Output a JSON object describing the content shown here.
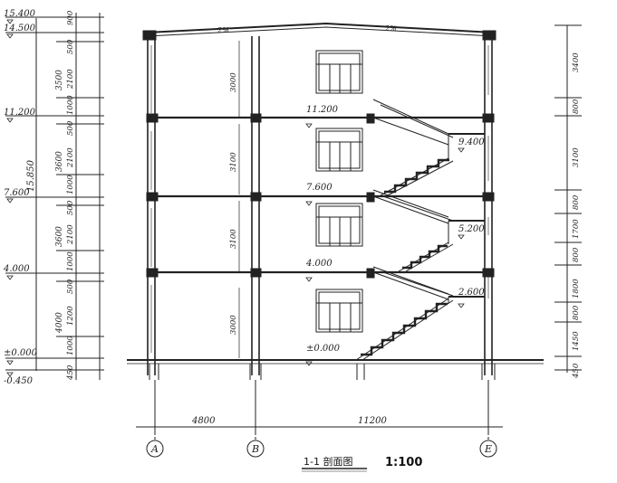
{
  "left_elevations": [
    "15.400",
    "14.500",
    "11.200",
    "7.600",
    "4.000",
    "±0.000",
    "-0.450"
  ],
  "left_overall": "15.850",
  "left_col1_dims": [
    "3500",
    "3600",
    "3600",
    "4000"
  ],
  "left_col2_dims": [
    "900",
    "500",
    "2100",
    "1000",
    "500",
    "2100",
    "1000",
    "500",
    "2100",
    "1000",
    "500",
    "1200",
    "1000",
    "450"
  ],
  "right_dims": [
    "3400",
    "800",
    "3100",
    "800",
    "1700",
    "800",
    "1800",
    "800",
    "1450",
    "450"
  ],
  "floor_labels": [
    "11.200",
    "7.600",
    "4.000",
    "±0.000"
  ],
  "landing_labels": [
    "9.400",
    "5.200",
    "2.600"
  ],
  "story_dims": [
    "3000",
    "3100",
    "3100",
    "3000"
  ],
  "roof_labels": [
    "2%",
    "2%"
  ],
  "bottom_dims": [
    "4800",
    "11200"
  ],
  "axes": [
    "A",
    "B",
    "E"
  ],
  "title": "1-1 剖面图",
  "scale": "1:100"
}
